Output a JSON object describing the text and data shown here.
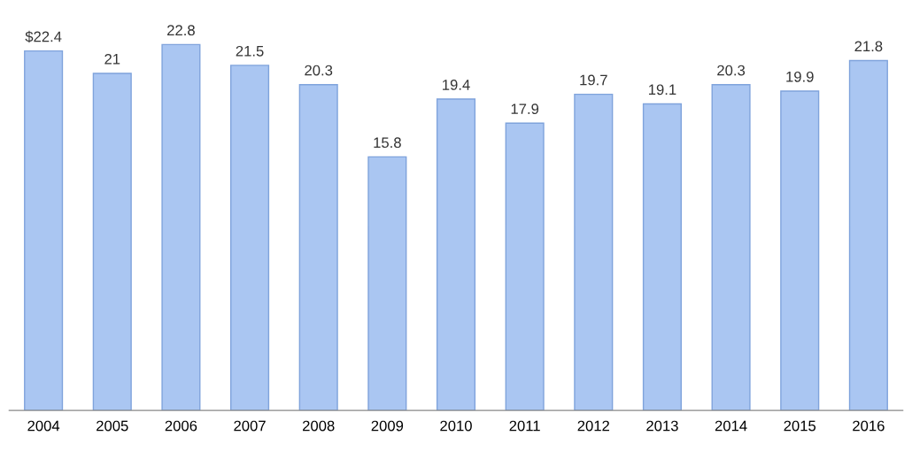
{
  "chart_data": {
    "type": "bar",
    "categories": [
      "2004",
      "2005",
      "2006",
      "2007",
      "2008",
      "2009",
      "2010",
      "2011",
      "2012",
      "2013",
      "2014",
      "2015",
      "2016"
    ],
    "values": [
      22.4,
      21,
      22.8,
      21.5,
      20.3,
      15.8,
      19.4,
      17.9,
      19.7,
      19.1,
      20.3,
      19.9,
      21.8
    ],
    "value_labels": [
      "$22.4",
      "21",
      "22.8",
      "21.5",
      "20.3",
      "15.8",
      "19.4",
      "17.9",
      "19.7",
      "19.1",
      "20.3",
      "19.9",
      "21.8"
    ],
    "color": "#aac6f2",
    "tick_labels": "x",
    "grid": false,
    "legend": false
  }
}
